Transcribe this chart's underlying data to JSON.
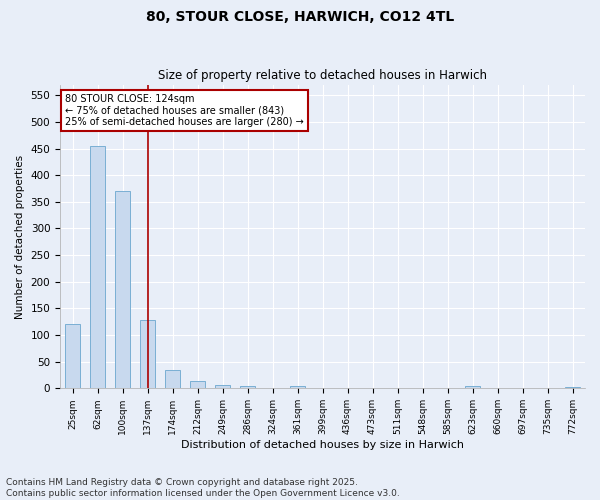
{
  "title": "80, STOUR CLOSE, HARWICH, CO12 4TL",
  "subtitle": "Size of property relative to detached houses in Harwich",
  "xlabel": "Distribution of detached houses by size in Harwich",
  "ylabel": "Number of detached properties",
  "categories": [
    "25sqm",
    "62sqm",
    "100sqm",
    "137sqm",
    "174sqm",
    "212sqm",
    "249sqm",
    "286sqm",
    "324sqm",
    "361sqm",
    "399sqm",
    "436sqm",
    "473sqm",
    "511sqm",
    "548sqm",
    "585sqm",
    "623sqm",
    "660sqm",
    "697sqm",
    "735sqm",
    "772sqm"
  ],
  "values": [
    120,
    455,
    370,
    128,
    35,
    14,
    7,
    5,
    0,
    5,
    0,
    1,
    0,
    0,
    0,
    0,
    5,
    0,
    0,
    0,
    3
  ],
  "bar_color": "#c8d9ee",
  "bar_edge_color": "#7aafd4",
  "vline_index": 3,
  "vline_color": "#aa0000",
  "annotation_text": "80 STOUR CLOSE: 124sqm\n← 75% of detached houses are smaller (843)\n25% of semi-detached houses are larger (280) →",
  "annotation_box_color": "#ffffff",
  "annotation_box_edge_color": "#aa0000",
  "ylim": [
    0,
    570
  ],
  "yticks": [
    0,
    50,
    100,
    150,
    200,
    250,
    300,
    350,
    400,
    450,
    500,
    550
  ],
  "background_color": "#e8eef8",
  "grid_color": "#ffffff",
  "footer_text": "Contains HM Land Registry data © Crown copyright and database right 2025.\nContains public sector information licensed under the Open Government Licence v3.0.",
  "title_fontsize": 10,
  "subtitle_fontsize": 8.5,
  "xlabel_fontsize": 8,
  "ylabel_fontsize": 7.5,
  "footer_fontsize": 6.5
}
